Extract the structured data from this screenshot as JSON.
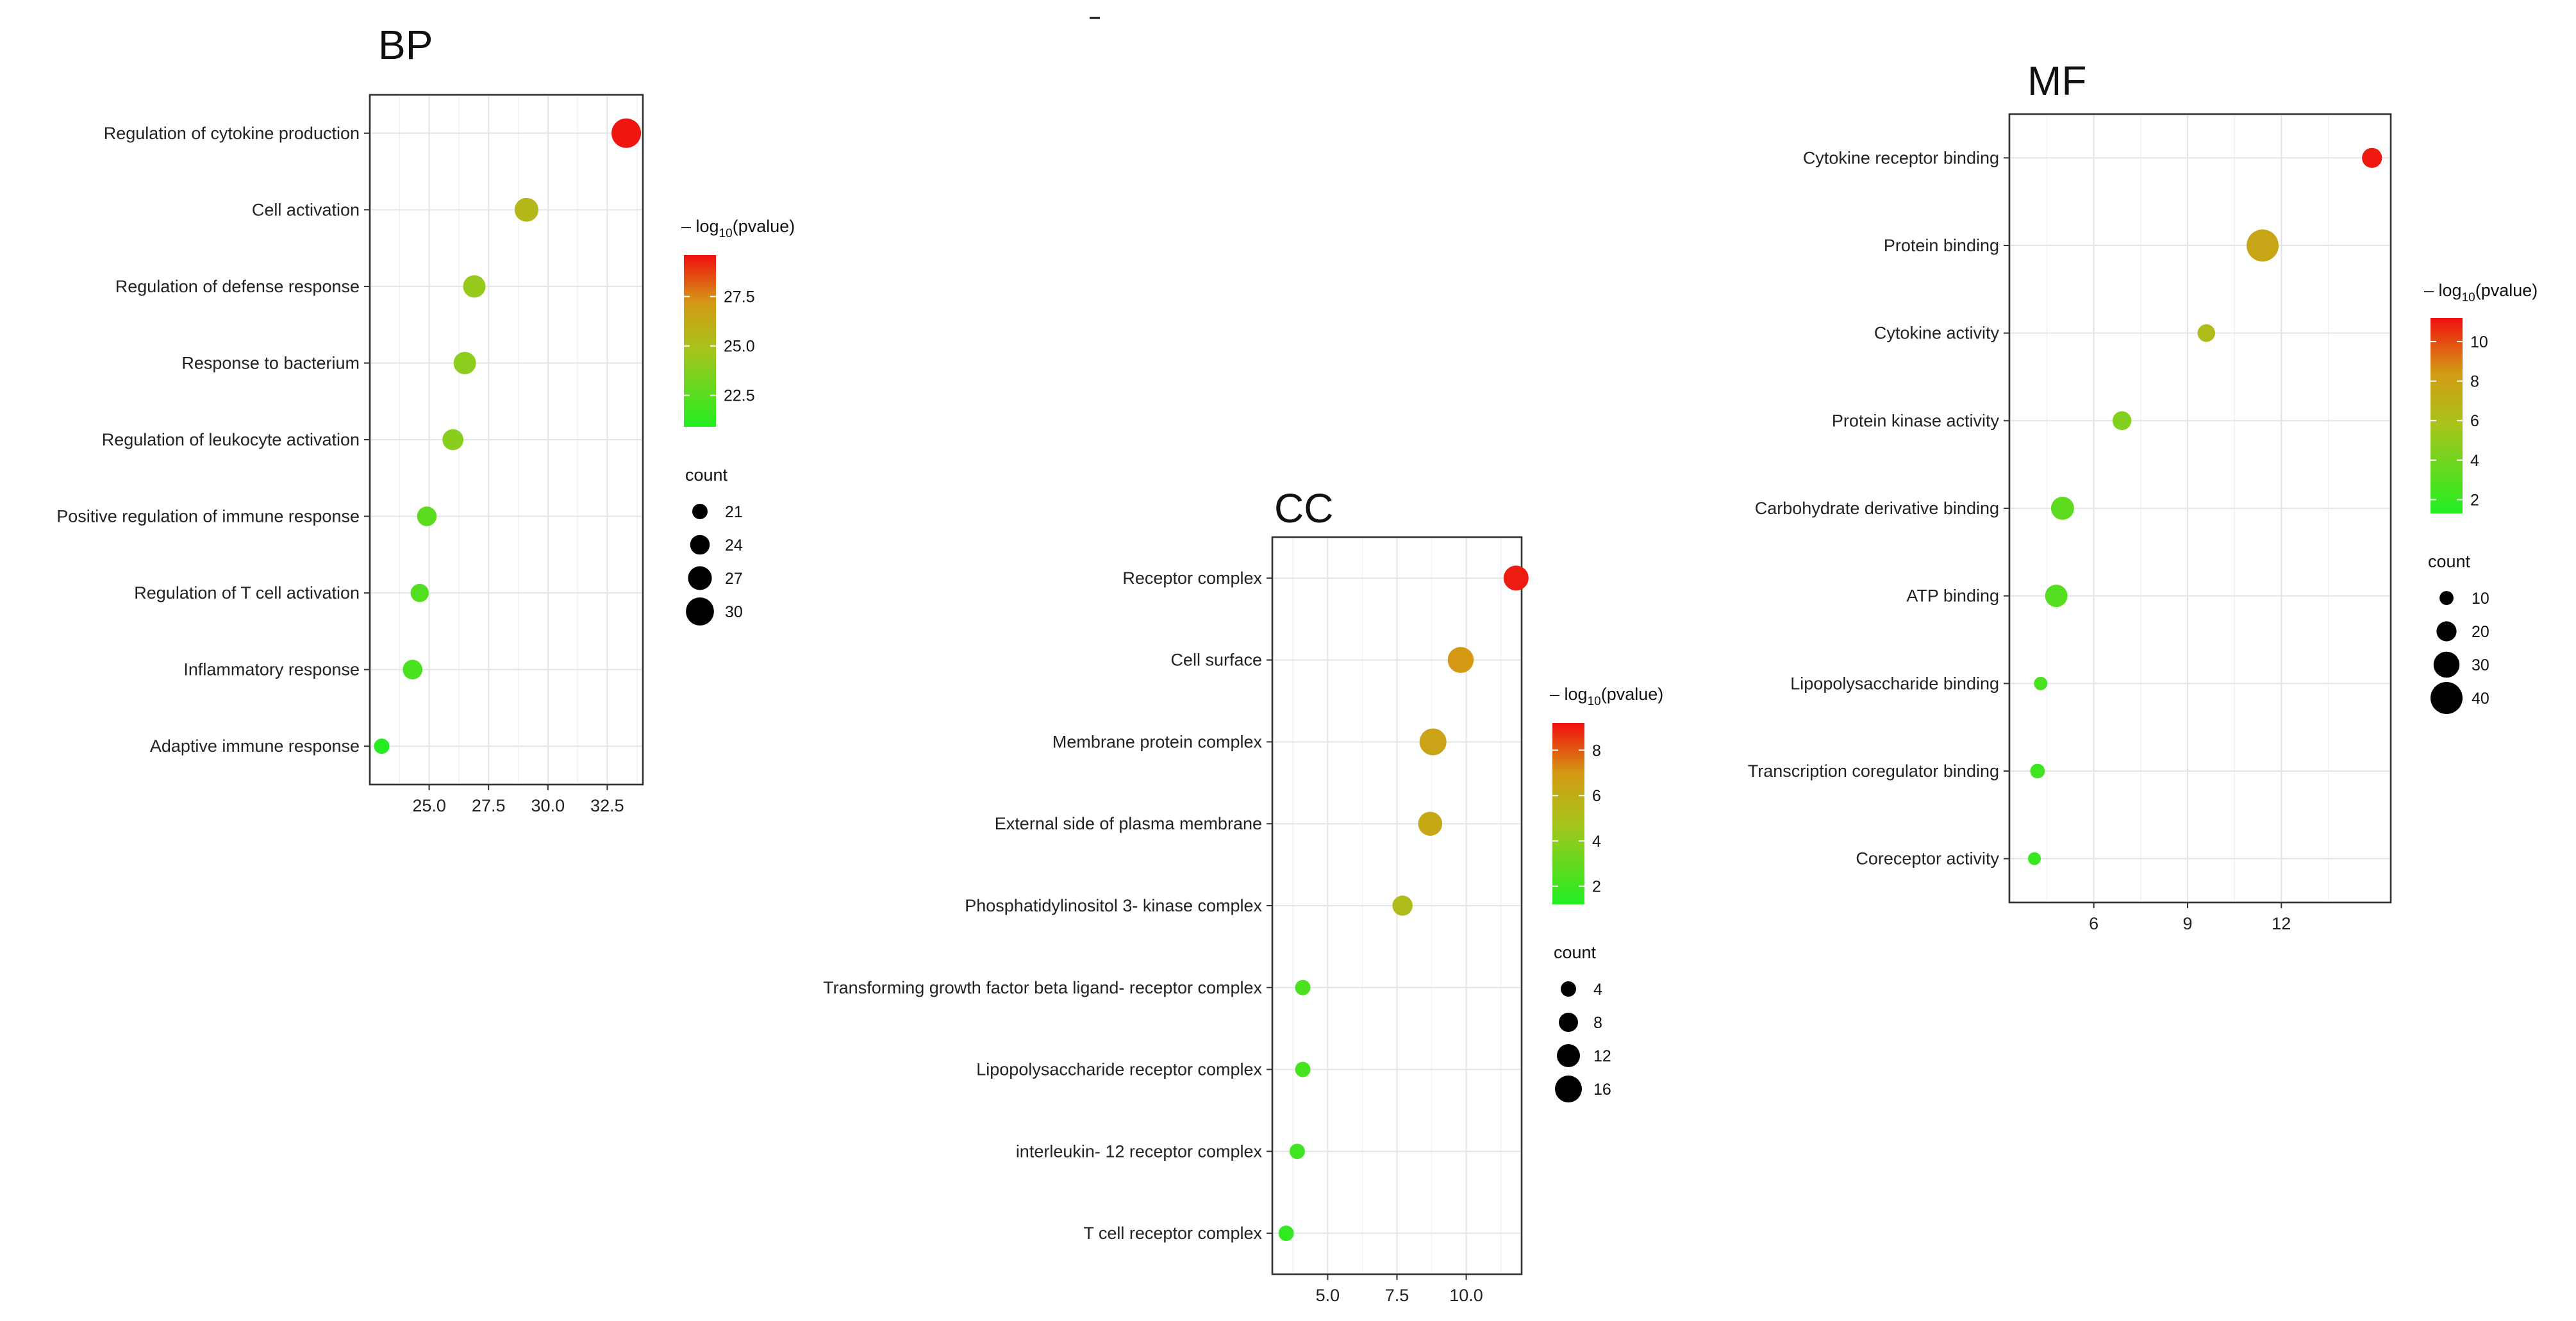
{
  "chart_data": [
    {
      "type": "scatter",
      "title": "BP",
      "xlabel": "",
      "ylabel": "",
      "xlim": [
        22.5,
        34.0
      ],
      "xticks": [
        "25.0",
        "27.5",
        "30.0",
        "32.5"
      ],
      "xtick_values": [
        25.0,
        27.5,
        30.0,
        32.5
      ],
      "categories": [
        "Regulation of cytokine production",
        "Cell activation",
        "Regulation of defense response",
        "Response to bacterium",
        "Regulation of leukocyte activation",
        "Positive regulation of immune response",
        "Regulation of T cell activation",
        "Inflammatory response",
        "Adaptive immune response"
      ],
      "x": [
        33.3,
        29.1,
        26.9,
        26.5,
        26.0,
        24.9,
        24.6,
        24.3,
        23.0
      ],
      "count": [
        31,
        27,
        26,
        26,
        25,
        24,
        23,
        24,
        21
      ],
      "pvalue": [
        29.5,
        25.5,
        24.3,
        24.0,
        23.9,
        22.6,
        22.3,
        22.0,
        21.0
      ],
      "legend": {
        "color_title_prefix": "– log",
        "color_title_sub": "10",
        "color_title_suffix": "(pvalue)",
        "color_ticks": [
          "27.5",
          "25.0",
          "22.5"
        ],
        "color_tick_values": [
          27.5,
          25.0,
          22.5
        ],
        "color_range": [
          20.9,
          29.6
        ],
        "size_title": "count",
        "size_labels": [
          "21",
          "24",
          "27",
          "30"
        ],
        "size_values": [
          21,
          24,
          27,
          30
        ],
        "size_range": [
          21,
          31
        ]
      }
    },
    {
      "type": "scatter",
      "title": "CC",
      "xlabel": "",
      "ylabel": "",
      "xlim": [
        3.0,
        12.0
      ],
      "xticks": [
        "5.0",
        "7.5",
        "10.0"
      ],
      "xtick_values": [
        5.0,
        7.5,
        10.0
      ],
      "categories": [
        "Receptor complex",
        "Cell surface",
        "Membrane protein complex",
        "External side of plasma membrane",
        "Phosphatidylinositol 3- kinase complex",
        "Transforming growth factor beta ligand- receptor complex",
        "Lipopolysaccharide receptor complex",
        "interleukin- 12 receptor complex",
        "T cell receptor complex"
      ],
      "x": [
        11.8,
        9.8,
        8.8,
        8.7,
        7.7,
        4.1,
        4.1,
        3.9,
        3.5
      ],
      "count": [
        14,
        15,
        16,
        13,
        9,
        4,
        4,
        4,
        4
      ],
      "pvalue": [
        9.0,
        7.0,
        6.5,
        6.3,
        5.2,
        2.3,
        2.2,
        2.0,
        1.6
      ],
      "legend": {
        "color_title_prefix": "– log",
        "color_title_sub": "10",
        "color_title_suffix": "(pvalue)",
        "color_ticks": [
          "8",
          "6",
          "4",
          "2"
        ],
        "color_tick_values": [
          8,
          6,
          4,
          2
        ],
        "color_range": [
          1.2,
          9.2
        ],
        "size_title": "count",
        "size_labels": [
          "4",
          "8",
          "12",
          "16"
        ],
        "size_values": [
          4,
          8,
          12,
          16
        ],
        "size_range": [
          4,
          16
        ]
      }
    },
    {
      "type": "scatter",
      "title": "MF",
      "xlabel": "",
      "ylabel": "",
      "xlim": [
        3.3,
        15.5
      ],
      "xticks": [
        "6",
        "9",
        "12"
      ],
      "xtick_values": [
        6,
        9,
        12
      ],
      "categories": [
        "Cytokine receptor binding",
        "Protein binding",
        "Cytokine activity",
        "Protein kinase activity",
        "Carbohydrate derivative binding",
        "ATP binding",
        "Lipopolysaccharide binding",
        "Transcription coregulator binding",
        "Coreceptor activity"
      ],
      "x": [
        14.9,
        11.4,
        9.6,
        6.9,
        5.0,
        4.8,
        4.3,
        4.2,
        4.1
      ],
      "count": [
        20,
        40,
        16,
        18,
        25,
        24,
        9,
        11,
        8
      ],
      "pvalue": [
        11.0,
        7.7,
        6.2,
        4.5,
        3.3,
        3.0,
        2.6,
        2.3,
        2.1
      ],
      "legend": {
        "color_title_prefix": "– log",
        "color_title_sub": "10",
        "color_title_suffix": "(pvalue)",
        "color_ticks": [
          "10",
          "8",
          "6",
          "4",
          "2"
        ],
        "color_tick_values": [
          10,
          8,
          6,
          4,
          2
        ],
        "color_range": [
          1.3,
          11.2
        ],
        "size_title": "count",
        "size_labels": [
          "10",
          "20",
          "30",
          "40"
        ],
        "size_values": [
          10,
          20,
          30,
          40
        ],
        "size_range": [
          8,
          40
        ]
      }
    }
  ],
  "colors": {
    "low": "#22ee22",
    "mid": "#a8c41c",
    "midhigh": "#d39a14",
    "high": "#f01010"
  }
}
